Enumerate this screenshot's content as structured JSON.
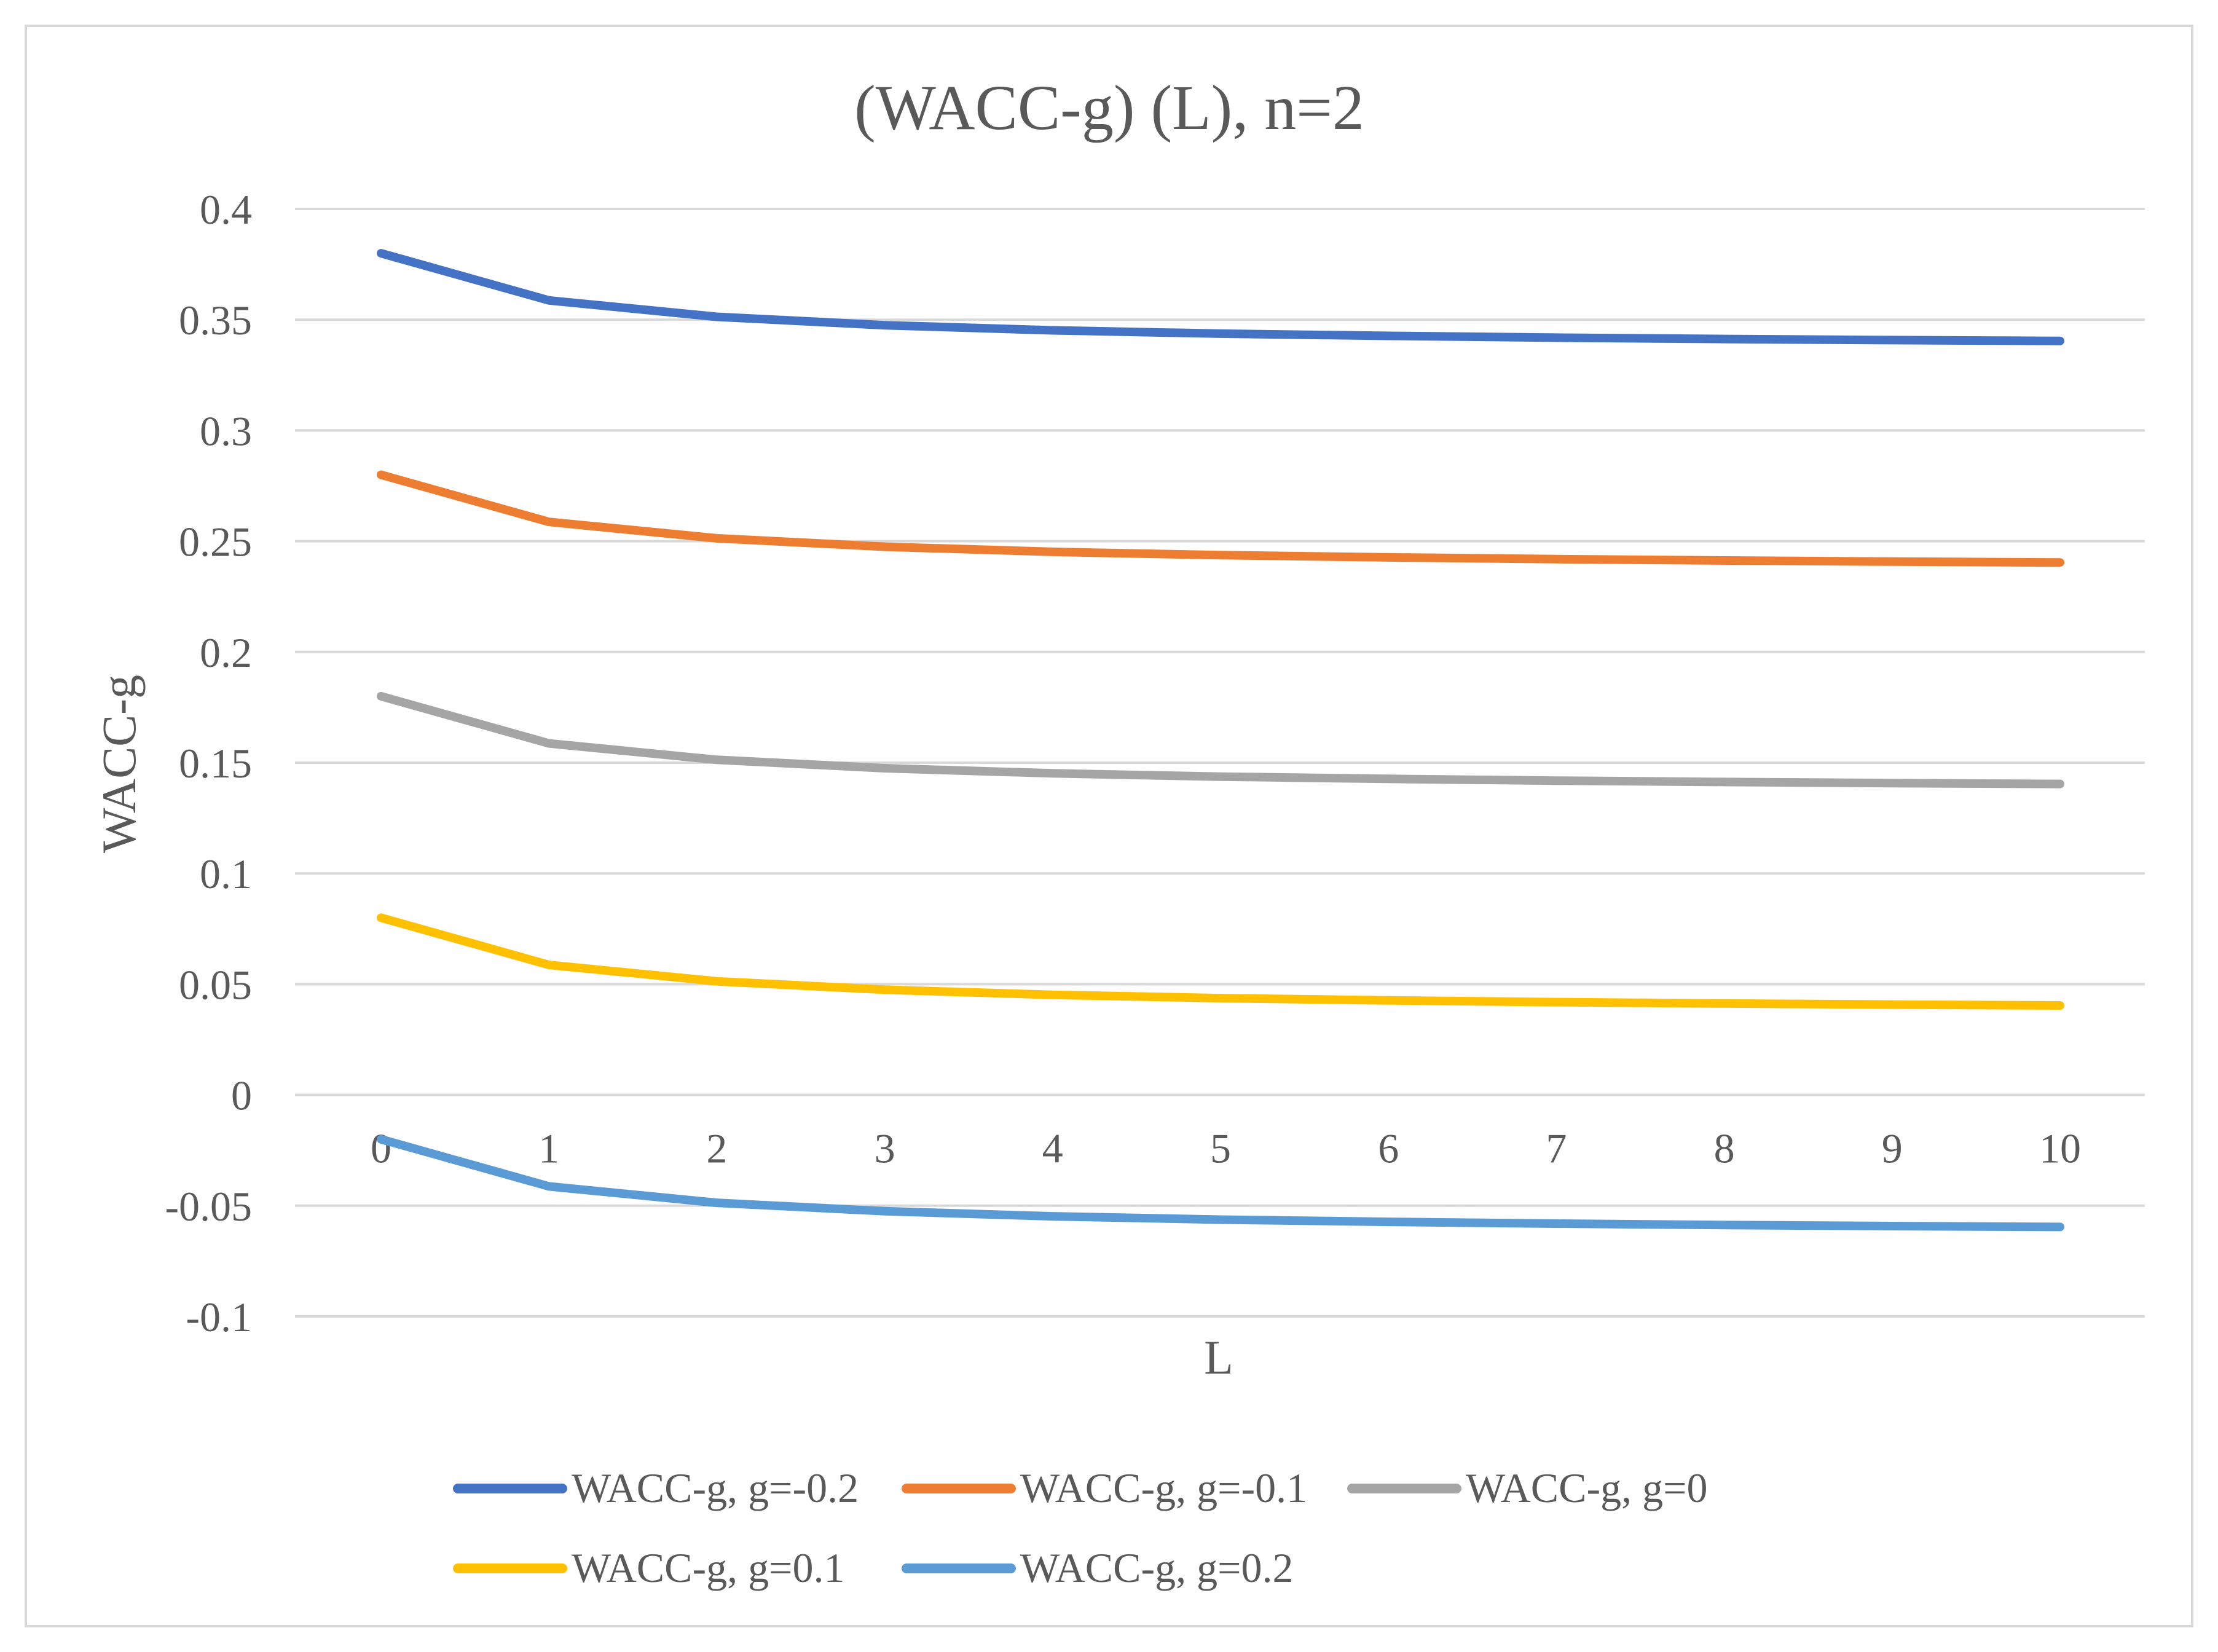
{
  "chart_data": {
    "type": "line",
    "title": "(WACC-g) (L), n=2",
    "xlabel": "L",
    "ylabel": "WACC-g",
    "x": [
      0,
      1,
      2,
      3,
      4,
      5,
      6,
      7,
      8,
      9,
      10
    ],
    "x_tick_labels": [
      "0",
      "1",
      "2",
      "3",
      "4",
      "5",
      "6",
      "7",
      "8",
      "9",
      "10"
    ],
    "y_ticks": [
      0.4,
      0.35,
      0.3,
      0.25,
      0.2,
      0.15,
      0.1,
      0.05,
      0,
      -0.05,
      -0.1
    ],
    "y_tick_labels": [
      "0.4",
      "0.35",
      "0.3",
      "0.25",
      "0.2",
      "0.15",
      "0.1",
      "0.05",
      "0",
      "-0.05",
      "-0.1"
    ],
    "ylim": [
      -0.1,
      0.4
    ],
    "grid": true,
    "legend_position": "bottom",
    "series": [
      {
        "name": "WACC-g, g=-0.2",
        "color": "#4472C4",
        "values": [
          0.38,
          0.3587,
          0.3513,
          0.3475,
          0.3452,
          0.3437,
          0.3427,
          0.3419,
          0.3413,
          0.3408,
          0.3404
        ]
      },
      {
        "name": "WACC-g, g=-0.1",
        "color": "#ED7D31",
        "values": [
          0.28,
          0.2587,
          0.2513,
          0.2475,
          0.2452,
          0.2437,
          0.2427,
          0.2419,
          0.2413,
          0.2408,
          0.2404
        ]
      },
      {
        "name": "WACC-g, g=0",
        "color": "#A5A5A5",
        "values": [
          0.18,
          0.1587,
          0.1513,
          0.1475,
          0.1452,
          0.1437,
          0.1427,
          0.1419,
          0.1413,
          0.1408,
          0.1404
        ]
      },
      {
        "name": "WACC-g, g=0.1",
        "color": "#FFC000",
        "values": [
          0.08,
          0.0587,
          0.0513,
          0.0475,
          0.0452,
          0.0437,
          0.0427,
          0.0419,
          0.0413,
          0.0408,
          0.0404
        ]
      },
      {
        "name": "WACC-g, g=0.2",
        "color": "#5B9BD5",
        "values": [
          -0.02,
          -0.0413,
          -0.0487,
          -0.0525,
          -0.0548,
          -0.0563,
          -0.0573,
          -0.0581,
          -0.0587,
          -0.0592,
          -0.0596
        ]
      }
    ]
  }
}
